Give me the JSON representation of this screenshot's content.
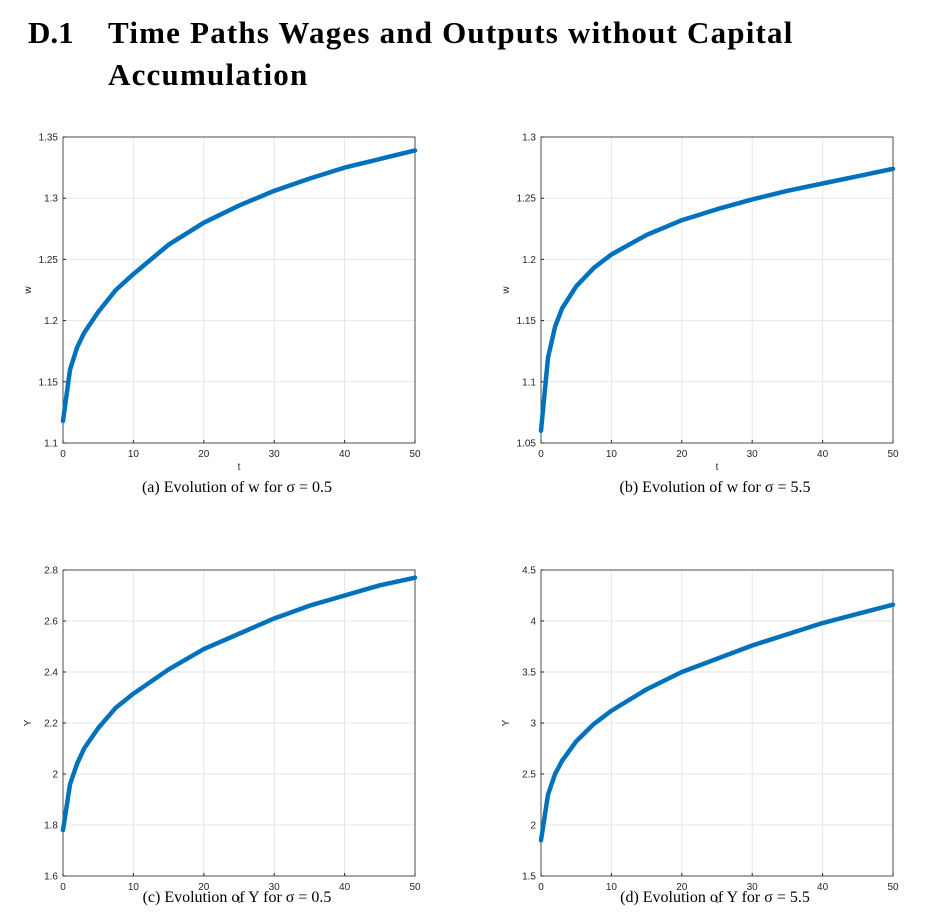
{
  "heading": {
    "number": "D.1",
    "title": "Time Paths Wages and Outputs without Capital Accumulation"
  },
  "chart_data": [
    {
      "type": "line",
      "caption": "(a) Evolution of w for σ = 0.5",
      "xlabel": "t",
      "ylabel": "w",
      "color": "#0072bd",
      "grid": true,
      "x": [
        0,
        1,
        2,
        3,
        5,
        7.5,
        10,
        15,
        20,
        25,
        30,
        35,
        40,
        45,
        50
      ],
      "values": [
        1.118,
        1.16,
        1.178,
        1.19,
        1.207,
        1.225,
        1.238,
        1.262,
        1.28,
        1.294,
        1.306,
        1.316,
        1.325,
        1.332,
        1.339
      ],
      "xlim": [
        0,
        50
      ],
      "ylim": [
        1.1,
        1.35
      ],
      "xticks": [
        0,
        10,
        20,
        30,
        40,
        50
      ],
      "yticks": [
        1.1,
        1.15,
        1.2,
        1.25,
        1.3,
        1.35
      ]
    },
    {
      "type": "line",
      "caption": "(b) Evolution of w for σ = 5.5",
      "xlabel": "t",
      "ylabel": "w",
      "color": "#0072bd",
      "grid": true,
      "x": [
        0,
        1,
        2,
        3,
        5,
        7.5,
        10,
        15,
        20,
        25,
        30,
        35,
        40,
        45,
        50
      ],
      "values": [
        1.06,
        1.12,
        1.145,
        1.16,
        1.178,
        1.193,
        1.204,
        1.22,
        1.232,
        1.241,
        1.249,
        1.256,
        1.262,
        1.268,
        1.274
      ],
      "xlim": [
        0,
        50
      ],
      "ylim": [
        1.05,
        1.3
      ],
      "xticks": [
        0,
        10,
        20,
        30,
        40,
        50
      ],
      "yticks": [
        1.05,
        1.1,
        1.15,
        1.2,
        1.25,
        1.3
      ]
    },
    {
      "type": "line",
      "caption": "(c) Evolution of Y for σ = 0.5",
      "xlabel": "t",
      "ylabel": "Y",
      "color": "#0072bd",
      "grid": true,
      "x": [
        0,
        1,
        2,
        3,
        5,
        7.5,
        10,
        15,
        20,
        25,
        30,
        35,
        40,
        45,
        50
      ],
      "values": [
        1.78,
        1.96,
        2.04,
        2.1,
        2.18,
        2.26,
        2.315,
        2.41,
        2.49,
        2.55,
        2.61,
        2.66,
        2.7,
        2.74,
        2.77
      ],
      "xlim": [
        0,
        50
      ],
      "ylim": [
        1.6,
        2.8
      ],
      "xticks": [
        0,
        10,
        20,
        30,
        40,
        50
      ],
      "yticks": [
        1.6,
        1.8,
        2,
        2.2,
        2.4,
        2.6,
        2.8
      ]
    },
    {
      "type": "line",
      "caption": "(d) Evolution of Y for σ = 5.5",
      "xlabel": "t",
      "ylabel": "Y",
      "color": "#0072bd",
      "grid": true,
      "x": [
        0,
        1,
        2,
        3,
        5,
        7.5,
        10,
        15,
        20,
        25,
        30,
        35,
        40,
        45,
        50
      ],
      "values": [
        1.85,
        2.3,
        2.5,
        2.63,
        2.82,
        2.99,
        3.12,
        3.33,
        3.5,
        3.63,
        3.76,
        3.87,
        3.98,
        4.07,
        4.16
      ],
      "xlim": [
        0,
        50
      ],
      "ylim": [
        1.5,
        4.5
      ],
      "xticks": [
        0,
        10,
        20,
        30,
        40,
        50
      ],
      "yticks": [
        1.5,
        2,
        2.5,
        3,
        3.5,
        4,
        4.5
      ]
    }
  ]
}
